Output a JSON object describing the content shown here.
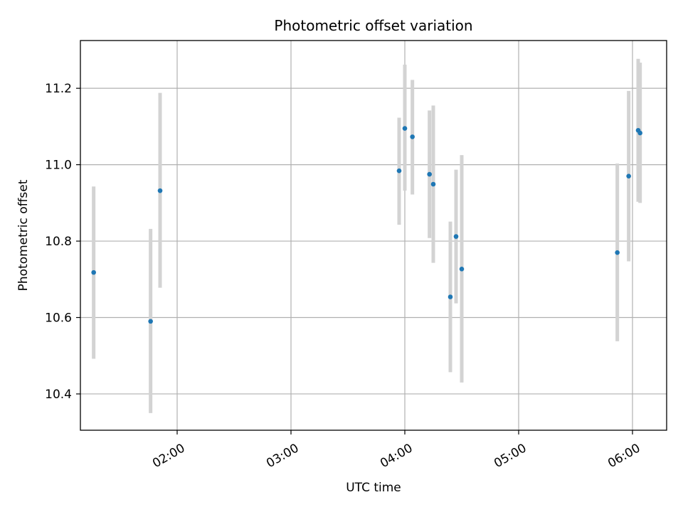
{
  "chart_data": {
    "type": "scatter",
    "title": "Photometric offset variation",
    "xlabel": "UTC time",
    "ylabel": "Photometric offset",
    "x_ticks": [
      "02:00",
      "03:00",
      "04:00",
      "05:00",
      "06:00"
    ],
    "y_ticks": [
      "10.4",
      "10.6",
      "10.8",
      "11.0",
      "11.2"
    ],
    "xlim": [
      "01:09",
      "06:18"
    ],
    "ylim": [
      10.305,
      11.325
    ],
    "grid": true,
    "colors": {
      "marker": "#1f77b4",
      "errorbar": "#d3d3d3",
      "grid": "#b0b0b0"
    },
    "points": [
      {
        "x": "01:16",
        "y": 10.718,
        "ylo": 10.492,
        "yhi": 10.943
      },
      {
        "x": "01:46",
        "y": 10.59,
        "ylo": 10.35,
        "yhi": 10.832
      },
      {
        "x": "01:51",
        "y": 10.932,
        "ylo": 10.678,
        "yhi": 11.188
      },
      {
        "x": "03:57",
        "y": 10.984,
        "ylo": 10.843,
        "yhi": 11.123
      },
      {
        "x": "04:00",
        "y": 11.095,
        "ylo": 10.932,
        "yhi": 11.262
      },
      {
        "x": "04:04",
        "y": 11.073,
        "ylo": 10.922,
        "yhi": 11.222
      },
      {
        "x": "04:13",
        "y": 10.975,
        "ylo": 10.808,
        "yhi": 11.142
      },
      {
        "x": "04:15",
        "y": 10.949,
        "ylo": 10.743,
        "yhi": 11.155
      },
      {
        "x": "04:24",
        "y": 10.654,
        "ylo": 10.457,
        "yhi": 10.851
      },
      {
        "x": "04:27",
        "y": 10.812,
        "ylo": 10.637,
        "yhi": 10.987
      },
      {
        "x": "04:30",
        "y": 10.727,
        "ylo": 10.43,
        "yhi": 11.025
      },
      {
        "x": "05:52",
        "y": 10.77,
        "ylo": 10.538,
        "yhi": 11.003
      },
      {
        "x": "05:58",
        "y": 10.97,
        "ylo": 10.747,
        "yhi": 11.193
      },
      {
        "x": "06:03",
        "y": 11.09,
        "ylo": 10.903,
        "yhi": 11.277
      },
      {
        "x": "06:04",
        "y": 11.083,
        "ylo": 10.9,
        "yhi": 11.267
      }
    ]
  }
}
